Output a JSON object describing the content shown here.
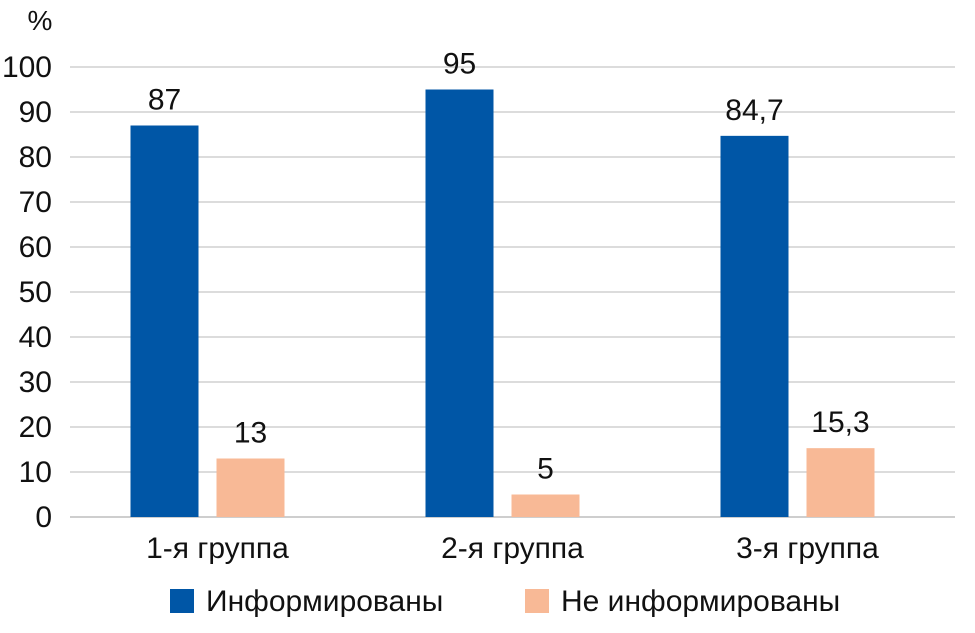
{
  "chart_data": {
    "type": "bar",
    "y_unit": "%",
    "categories": [
      "1-я группа",
      "2-я группа",
      "3-я группа"
    ],
    "series": [
      {
        "name": "Информированы",
        "values": [
          87,
          95,
          84.7
        ],
        "value_labels": [
          "87",
          "95",
          "84,7"
        ],
        "color": "#0056a6"
      },
      {
        "name": "Не информированы",
        "values": [
          13,
          5,
          15.3
        ],
        "value_labels": [
          "13",
          "5",
          "15,3"
        ],
        "color": "#f8b996"
      }
    ],
    "ylim": [
      0,
      100
    ],
    "yticks": [
      0,
      10,
      20,
      30,
      40,
      50,
      60,
      70,
      80,
      90,
      100
    ],
    "grid": true,
    "legend_position": "bottom"
  }
}
